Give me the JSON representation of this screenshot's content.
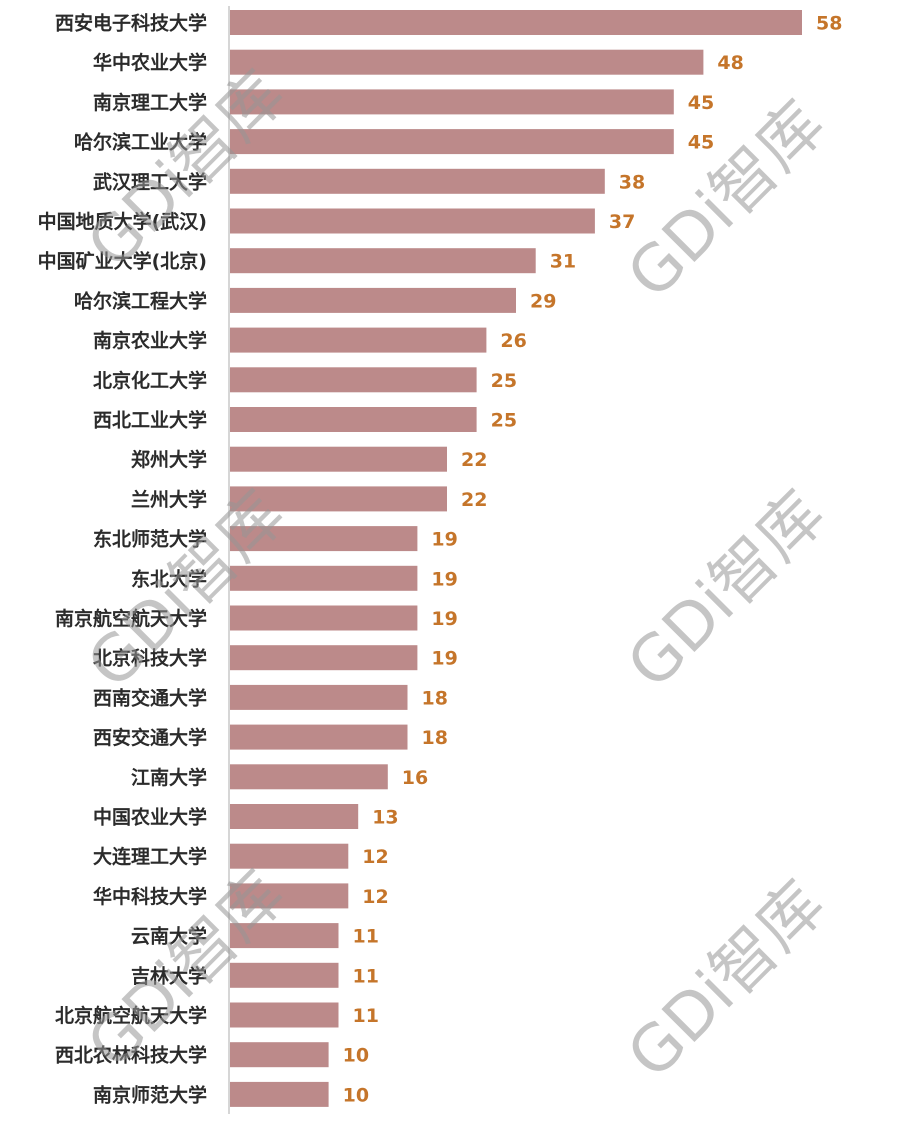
{
  "colors": {
    "bar": "#bc8a8a",
    "value_label": "#c5752a",
    "axis": "#c8c8c8"
  },
  "watermark": "GDi智库",
  "chart_data": {
    "type": "bar",
    "orientation": "horizontal",
    "categories": [
      "西安电子科技大学",
      "华中农业大学",
      "南京理工大学",
      "哈尔滨工业大学",
      "武汉理工大学",
      "中国地质大学(武汉)",
      "中国矿业大学(北京)",
      "哈尔滨工程大学",
      "南京农业大学",
      "北京化工大学",
      "西北工业大学",
      "郑州大学",
      "兰州大学",
      "东北师范大学",
      "东北大学",
      "南京航空航天大学",
      "北京科技大学",
      "西南交通大学",
      "西安交通大学",
      "江南大学",
      "中国农业大学",
      "大连理工大学",
      "华中科技大学",
      "云南大学",
      "吉林大学",
      "北京航空航天大学",
      "西北农林科技大学",
      "南京师范大学"
    ],
    "values": [
      58,
      48,
      45,
      45,
      38,
      37,
      31,
      29,
      26,
      25,
      25,
      22,
      22,
      19,
      19,
      19,
      19,
      18,
      18,
      16,
      13,
      12,
      12,
      11,
      11,
      11,
      10,
      10
    ],
    "xlim": [
      0,
      58
    ],
    "grid": false,
    "data_labels": true
  }
}
